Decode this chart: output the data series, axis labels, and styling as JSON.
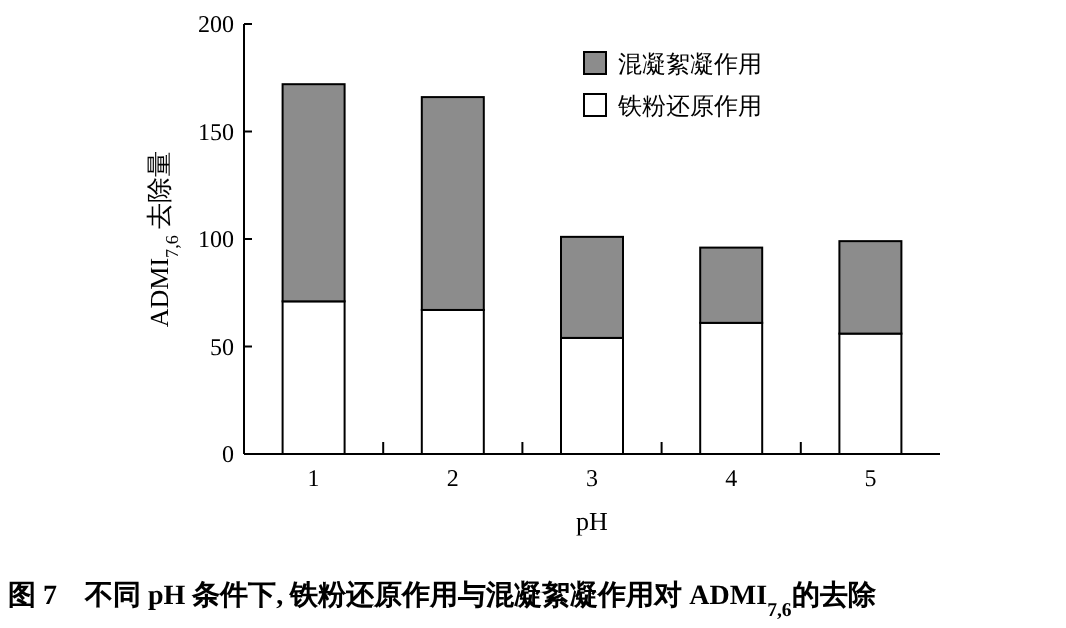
{
  "chart_data": {
    "type": "bar",
    "stacked": true,
    "title": "图 7　不同 pH 条件下, 铁粉还原作用与混凝絮凝作用对 ADMI$_{7,6}$的去除",
    "xlabel": "pH",
    "ylabel": "ADMI$_{7,6}$ 去除量",
    "categories": [
      "1",
      "2",
      "3",
      "4",
      "5"
    ],
    "series": [
      {
        "name": "铁粉还原作用",
        "color": "#ffffff",
        "values": [
          71,
          67,
          54,
          61,
          56
        ]
      },
      {
        "name": "混凝絮凝作用",
        "color": "#8c8c8c",
        "values": [
          101,
          99,
          47,
          35,
          43
        ]
      }
    ],
    "ylim": [
      0,
      200
    ],
    "yticks": [
      0,
      50,
      100,
      150,
      200
    ],
    "legend": "top right"
  }
}
